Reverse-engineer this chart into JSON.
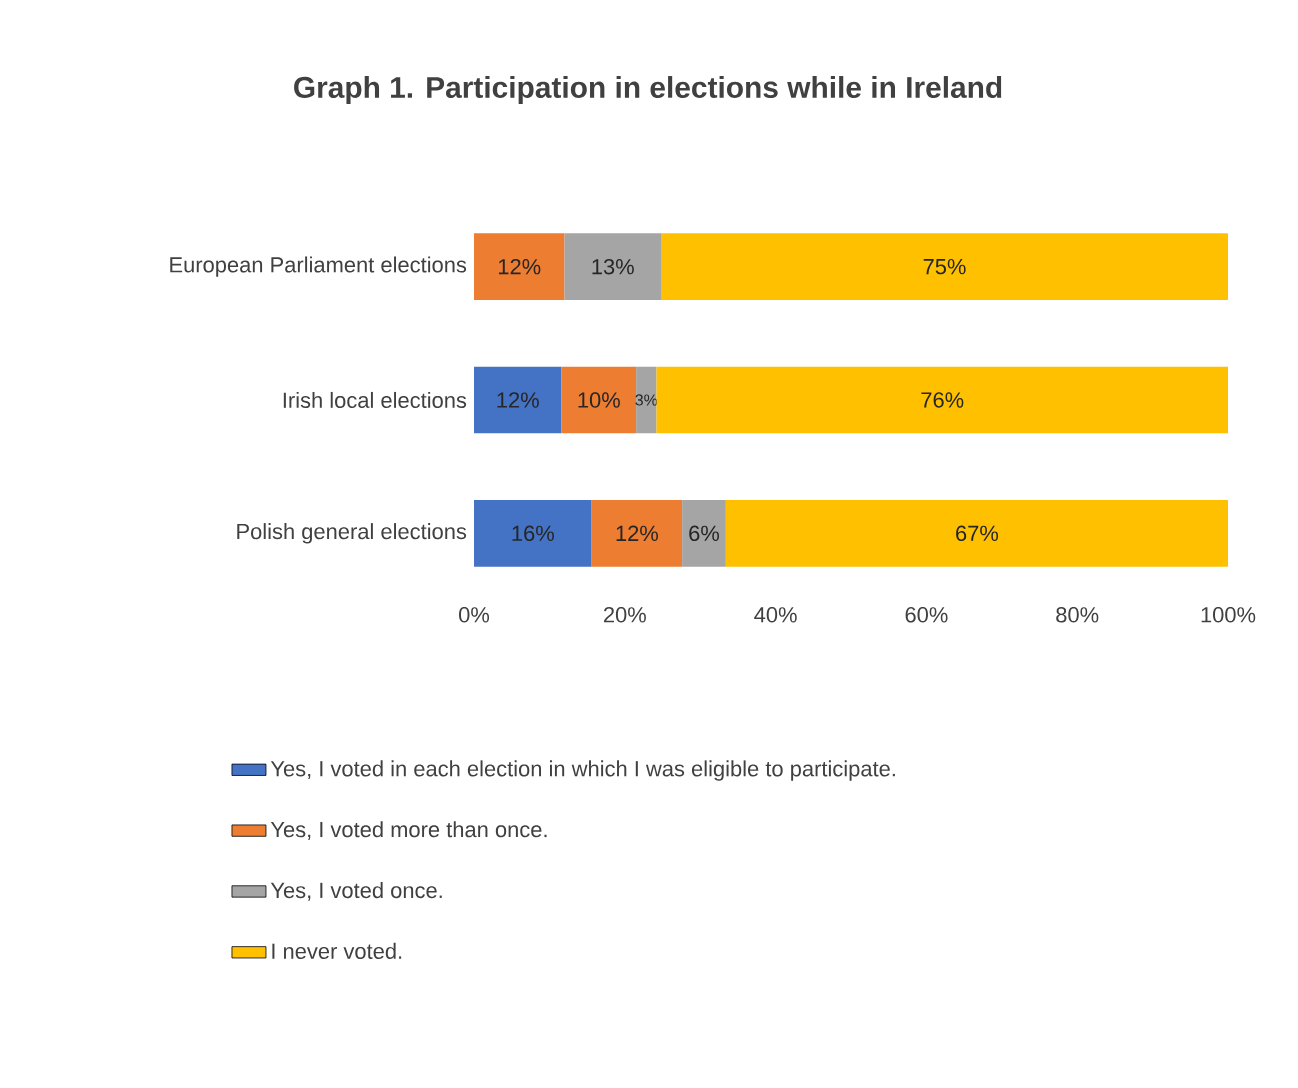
{
  "chart_data": {
    "type": "bar",
    "orientation": "horizontal",
    "stacked": true,
    "title": "Graph 1. Participation in elections while in Ireland",
    "categories": [
      "European Parliament elections",
      "Irish local elections",
      "Polish general elections"
    ],
    "series": [
      {
        "name": "Yes, I voted in each election in which I was eligible to participate.",
        "color": "#4472c4",
        "values": [
          null,
          11.6,
          15.6
        ],
        "value_labels": [
          null,
          "12%",
          "16%"
        ]
      },
      {
        "name": "Yes, I voted more than once.",
        "color": "#ed7d31",
        "values": [
          12.0,
          9.9,
          12.0
        ],
        "value_labels": [
          "12%",
          "10%",
          "12%"
        ]
      },
      {
        "name": "Yes, I voted once.",
        "color": "#a5a5a5",
        "values": [
          12.8,
          2.7,
          5.8
        ],
        "value_labels": [
          "13%",
          "3%",
          "6%"
        ]
      },
      {
        "name": "I never voted.",
        "color": "#ffc000",
        "values": [
          75.2,
          75.8,
          66.6
        ],
        "value_labels": [
          "75%",
          "76%",
          "67%"
        ]
      }
    ],
    "xlim": [
      0,
      100
    ],
    "xticks": [
      {
        "value": 0,
        "label": "0%"
      },
      {
        "value": 20,
        "label": "20%"
      },
      {
        "value": 40,
        "label": "40%"
      },
      {
        "value": 60,
        "label": "60%"
      },
      {
        "value": 80,
        "label": "80%"
      },
      {
        "value": 100,
        "label": "100%"
      }
    ],
    "legend": "bottom"
  }
}
